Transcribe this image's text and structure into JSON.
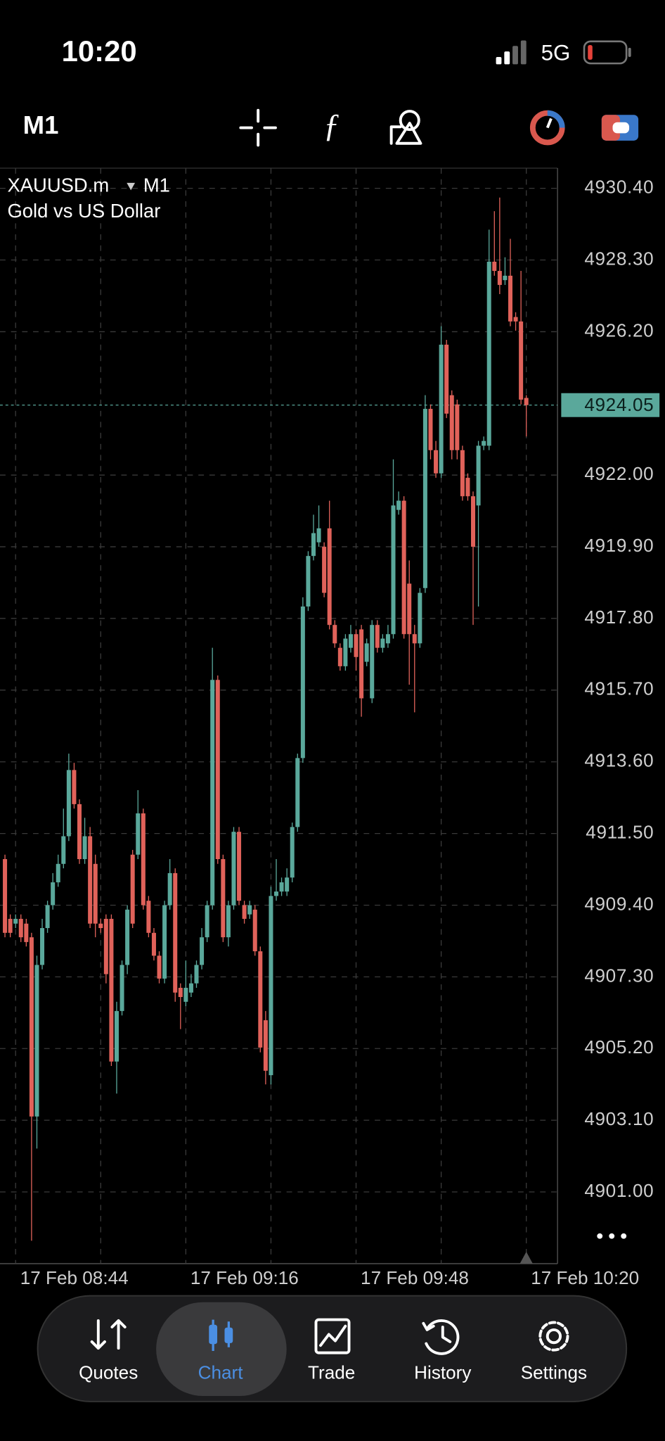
{
  "status_bar": {
    "time": "10:20",
    "network": "5G"
  },
  "toolbar": {
    "timeframe": "M1"
  },
  "chart_data": {
    "type": "candlestick",
    "symbol": "XAUUSD.m",
    "timeframe": "M1",
    "subtitle": "Gold vs US Dollar",
    "categories": [
      null,
      null,
      "17 Feb 08:44",
      null,
      null,
      null,
      null,
      null,
      null,
      null,
      null,
      null,
      null,
      null,
      null,
      null,
      null,
      null,
      null,
      null,
      null,
      null,
      null,
      null,
      null,
      null,
      null,
      null,
      null,
      null,
      null,
      null,
      null,
      null,
      "17 Feb 09:16",
      null,
      null,
      null,
      null,
      null,
      null,
      null,
      null,
      null,
      null,
      null,
      null,
      null,
      null,
      null,
      null,
      null,
      null,
      null,
      null,
      null,
      null,
      null,
      null,
      null,
      null,
      null,
      null,
      null,
      null,
      null,
      "17 Feb 09:48",
      null,
      null,
      null,
      null,
      null,
      null,
      null,
      null,
      null,
      null,
      null,
      null,
      null,
      null,
      null,
      null,
      null,
      null,
      null,
      null,
      null,
      null,
      null,
      null,
      null,
      null,
      null,
      null,
      null,
      null,
      null,
      "17 Feb 10:20"
    ],
    "open": [
      4910.75,
      4909.0,
      4908.86,
      4909.0,
      4908.86,
      4908.46,
      4903.21,
      4907.65,
      4908.73,
      4909.4,
      4910.07,
      4910.61,
      4911.42,
      4913.36,
      4912.36,
      4910.75,
      4911.42,
      4910.61,
      4908.86,
      4909.0,
      4909.0,
      4904.82,
      4906.3,
      4907.65,
      4910.88,
      4910.88,
      4912.09,
      4909.53,
      4908.59,
      4907.92,
      4907.25,
      4909.4,
      4910.34,
      4906.98,
      4906.57,
      4906.84,
      4907.11,
      4907.65,
      4908.46,
      4909.4,
      4916.0,
      4910.75,
      4908.46,
      4909.4,
      4911.55,
      4909.4,
      4909.13,
      4909.27,
      4908.05,
      4906.03,
      4904.42,
      4909.67,
      4909.8,
      4909.8,
      4910.21,
      4911.69,
      4913.71,
      4918.15,
      4919.63,
      4920.03,
      4919.9,
      4920.44,
      4917.61,
      4916.94,
      4916.4,
      4916.94,
      4917.34,
      4917.48,
      4916.53,
      4915.46,
      4917.61,
      4916.94,
      4917.07,
      4917.34,
      4920.98,
      4921.25,
      4918.82,
      4917.34,
      4917.07,
      4918.69,
      4923.94,
      4922.73,
      4922.05,
      4925.82,
      4924.34,
      4924.07,
      4922.73,
      4921.92,
      4921.38,
      4921.11,
      4922.86,
      4922.86,
      4928.25,
      4927.98,
      4927.71,
      4927.84,
      4926.63,
      4926.5,
      4924.26
    ],
    "high": [
      4910.88,
      4909.13,
      4909.13,
      4909.13,
      4909.0,
      4908.59,
      4907.92,
      4909.0,
      4909.53,
      4910.34,
      4910.88,
      4912.23,
      4913.84,
      4913.57,
      4912.5,
      4911.96,
      4911.69,
      4910.88,
      4909.0,
      4909.13,
      4909.13,
      4906.57,
      4907.78,
      4909.4,
      4911.02,
      4912.77,
      4912.23,
      4909.67,
      4908.73,
      4908.05,
      4909.53,
      4910.75,
      4910.48,
      4907.11,
      4907.78,
      4907.38,
      4907.78,
      4908.73,
      4909.53,
      4916.94,
      4916.13,
      4910.88,
      4909.53,
      4911.69,
      4911.69,
      4909.53,
      4909.53,
      4909.4,
      4908.19,
      4906.3,
      4909.94,
      4910.75,
      4910.21,
      4910.48,
      4911.82,
      4913.84,
      4918.42,
      4919.77,
      4920.84,
      4921.11,
      4920.03,
      4921.25,
      4917.75,
      4917.07,
      4917.34,
      4917.61,
      4917.48,
      4917.61,
      4917.21,
      4917.75,
      4917.75,
      4917.34,
      4917.61,
      4922.46,
      4921.52,
      4921.38,
      4919.5,
      4917.61,
      4918.69,
      4924.34,
      4924.07,
      4923.0,
      4926.36,
      4925.96,
      4924.48,
      4924.21,
      4922.86,
      4922.05,
      4921.52,
      4923.0,
      4923.13,
      4929.19,
      4929.73,
      4930.13,
      4928.38,
      4928.92,
      4926.77,
      4927.98,
      4924.34
    ],
    "low": [
      4908.46,
      4908.46,
      4908.73,
      4908.32,
      4908.19,
      4899.57,
      4902.27,
      4907.52,
      4908.59,
      4909.27,
      4909.94,
      4910.48,
      4911.28,
      4912.23,
      4910.61,
      4910.61,
      4908.73,
      4908.46,
      4908.59,
      4907.11,
      4904.69,
      4903.88,
      4906.17,
      4907.38,
      4908.73,
      4910.75,
      4909.27,
      4908.46,
      4907.78,
      4907.11,
      4907.11,
      4909.27,
      4906.57,
      4905.77,
      4906.44,
      4906.71,
      4906.98,
      4907.52,
      4908.32,
      4909.27,
      4910.61,
      4908.32,
      4908.19,
      4909.27,
      4909.4,
      4908.86,
      4909.0,
      4907.92,
      4905.09,
      4904.15,
      4904.15,
      4909.53,
      4909.67,
      4909.67,
      4910.07,
      4911.55,
      4913.57,
      4918.02,
      4919.5,
      4919.9,
      4918.42,
      4917.48,
      4916.94,
      4916.27,
      4916.27,
      4916.8,
      4916.27,
      4914.92,
      4916.4,
      4915.32,
      4916.8,
      4916.8,
      4916.94,
      4917.21,
      4920.84,
      4917.21,
      4915.86,
      4915.05,
      4916.94,
      4918.55,
      4922.46,
      4921.92,
      4921.92,
      4923.67,
      4922.46,
      4922.46,
      4921.25,
      4921.25,
      4917.61,
      4918.15,
      4922.73,
      4922.73,
      4927.84,
      4927.3,
      4927.57,
      4926.36,
      4926.23,
      4924.07,
      4923.13
    ],
    "close": [
      4908.59,
      4908.59,
      4909.0,
      4908.46,
      4908.32,
      4903.21,
      4907.65,
      4908.73,
      4909.4,
      4910.07,
      4910.61,
      4911.42,
      4913.36,
      4912.36,
      4910.75,
      4911.42,
      4908.86,
      4908.86,
      4908.73,
      4907.38,
      4904.82,
      4906.3,
      4907.65,
      4909.27,
      4908.86,
      4912.09,
      4909.4,
      4908.59,
      4907.92,
      4907.25,
      4909.4,
      4910.34,
      4906.84,
      4906.71,
      4906.98,
      4907.11,
      4907.65,
      4908.46,
      4909.4,
      4916.0,
      4910.75,
      4908.46,
      4909.4,
      4911.55,
      4909.53,
      4909.0,
      4909.4,
      4908.05,
      4905.23,
      4904.55,
      4909.67,
      4909.8,
      4910.07,
      4910.21,
      4911.69,
      4913.71,
      4918.15,
      4919.63,
      4920.3,
      4920.44,
      4918.55,
      4917.61,
      4917.07,
      4916.4,
      4917.21,
      4917.34,
      4916.67,
      4915.46,
      4917.07,
      4917.61,
      4916.94,
      4917.21,
      4917.34,
      4921.11,
      4921.25,
      4917.34,
      4917.34,
      4917.07,
      4918.55,
      4923.94,
      4922.73,
      4922.05,
      4925.82,
      4923.8,
      4922.73,
      4922.73,
      4921.38,
      4921.38,
      4919.9,
      4922.86,
      4923.0,
      4928.25,
      4927.98,
      4927.57,
      4927.84,
      4926.5,
      4926.5,
      4924.21,
      4924.05
    ],
    "up_color": "#5aa89b",
    "down_color": "#e0625a",
    "ylim": [
      4898.9,
      4930.99
    ],
    "yticks": [
      {
        "value": 4930.4,
        "label": "4930.40"
      },
      {
        "value": 4928.3,
        "label": "4928.30"
      },
      {
        "value": 4926.2,
        "label": "4926.20"
      },
      {
        "value": 4922,
        "label": "4922.00"
      },
      {
        "value": 4919.9,
        "label": "4919.90"
      },
      {
        "value": 4917.8,
        "label": "4917.80"
      },
      {
        "value": 4915.7,
        "label": "4915.70"
      },
      {
        "value": 4913.6,
        "label": "4913.60"
      },
      {
        "value": 4911.5,
        "label": "4911.50"
      },
      {
        "value": 4909.4,
        "label": "4909.40"
      },
      {
        "value": 4907.3,
        "label": "4907.30"
      },
      {
        "value": 4905.2,
        "label": "4905.20"
      },
      {
        "value": 4903.1,
        "label": "4903.10"
      },
      {
        "value": 4901,
        "label": "4901.00"
      }
    ],
    "grid": true,
    "last_price": {
      "value": 4924.05,
      "label": "4924.05"
    }
  },
  "tab_bar": {
    "tabs": [
      {
        "label": "Quotes"
      },
      {
        "label": "Chart"
      },
      {
        "label": "Trade"
      },
      {
        "label": "History"
      },
      {
        "label": "Settings"
      }
    ],
    "active": 1
  }
}
